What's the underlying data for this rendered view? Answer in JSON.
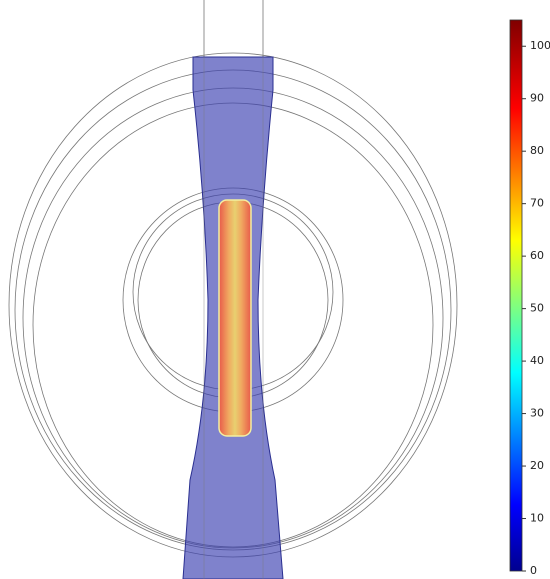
{
  "colorbar": {
    "lim": [
      0,
      105
    ],
    "ticks": [
      0,
      10,
      20,
      30,
      40,
      50,
      60,
      70,
      80,
      90,
      100
    ]
  }
}
